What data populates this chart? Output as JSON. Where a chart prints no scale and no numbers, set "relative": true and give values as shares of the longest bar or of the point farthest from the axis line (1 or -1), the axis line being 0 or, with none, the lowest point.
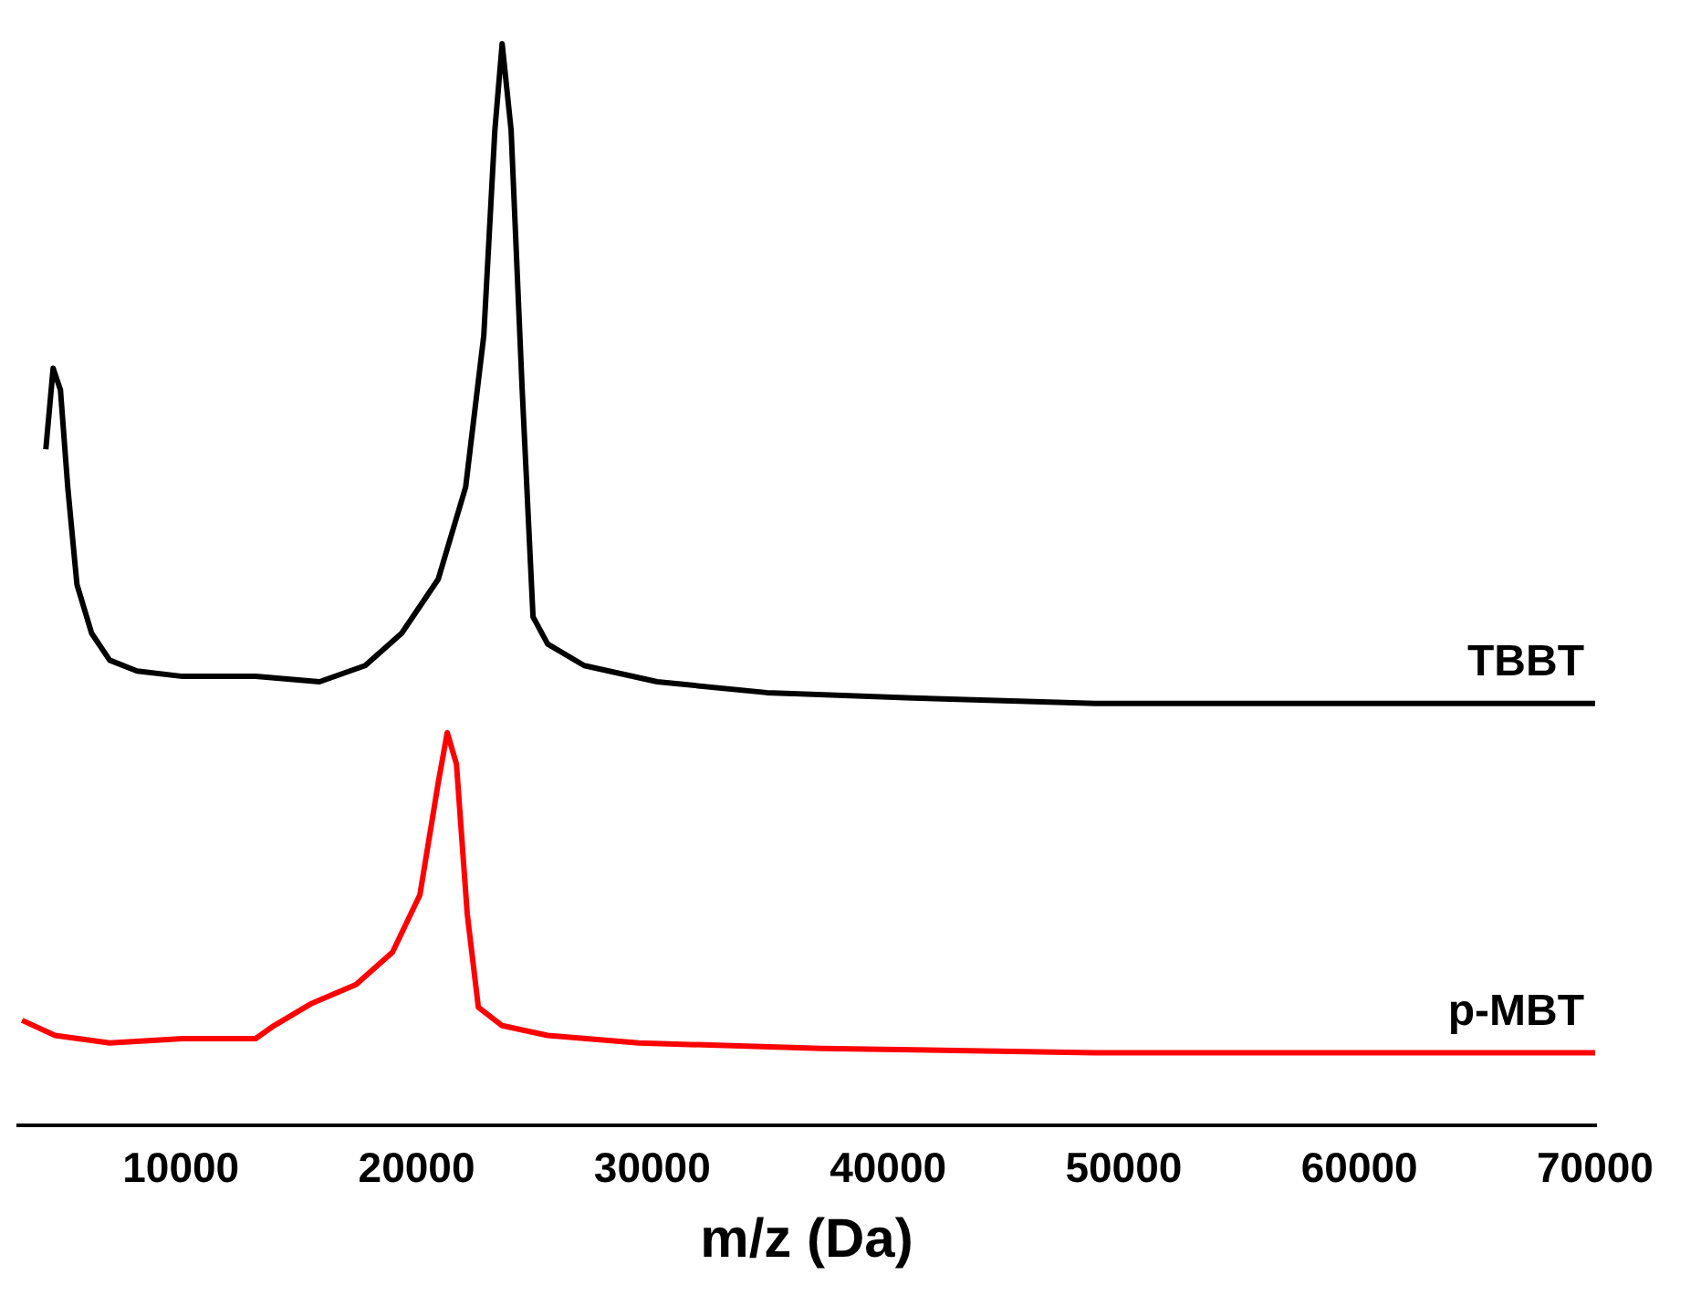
{
  "chart_data": {
    "type": "line",
    "xlabel": "m/z (Da)",
    "relative": true,
    "xlim": [
      3100,
      70000
    ],
    "xticks": [
      10000,
      20000,
      30000,
      40000,
      50000,
      60000,
      70000
    ],
    "grid": false,
    "legend": false,
    "marker": "none",
    "line_style": "solid",
    "series": [
      {
        "name": "TBBT",
        "color": "#000000",
        "x": [
          4270,
          4580,
          4890,
          5200,
          5590,
          6210,
          6980,
          8140,
          10080,
          13170,
          15880,
          17820,
          19370,
          20920,
          22080,
          22850,
          23320,
          23630,
          24010,
          24480,
          24940,
          25560,
          27110,
          30210,
          34850,
          41040,
          48790,
          56530,
          70000
        ],
        "values": [
          0.625,
          0.7,
          0.68,
          0.59,
          0.5,
          0.455,
          0.43,
          0.42,
          0.415,
          0.415,
          0.41,
          0.425,
          0.455,
          0.505,
          0.59,
          0.73,
          0.92,
          1.0,
          0.92,
          0.68,
          0.47,
          0.445,
          0.425,
          0.41,
          0.4,
          0.395,
          0.39,
          0.39,
          0.39
        ]
      },
      {
        "name": "p-MBT",
        "color": "#ff0000",
        "x": [
          3260,
          4660,
          6980,
          10080,
          13170,
          13950,
          15500,
          17430,
          18980,
          20140,
          20920,
          21300,
          21690,
          22150,
          22620,
          23630,
          25560,
          29430,
          37170,
          48790,
          70000
        ],
        "values": [
          0.097,
          0.083,
          0.076,
          0.08,
          0.08,
          0.092,
          0.112,
          0.13,
          0.16,
          0.213,
          0.317,
          0.363,
          0.334,
          0.195,
          0.109,
          0.092,
          0.083,
          0.076,
          0.071,
          0.067,
          0.067
        ]
      }
    ]
  }
}
